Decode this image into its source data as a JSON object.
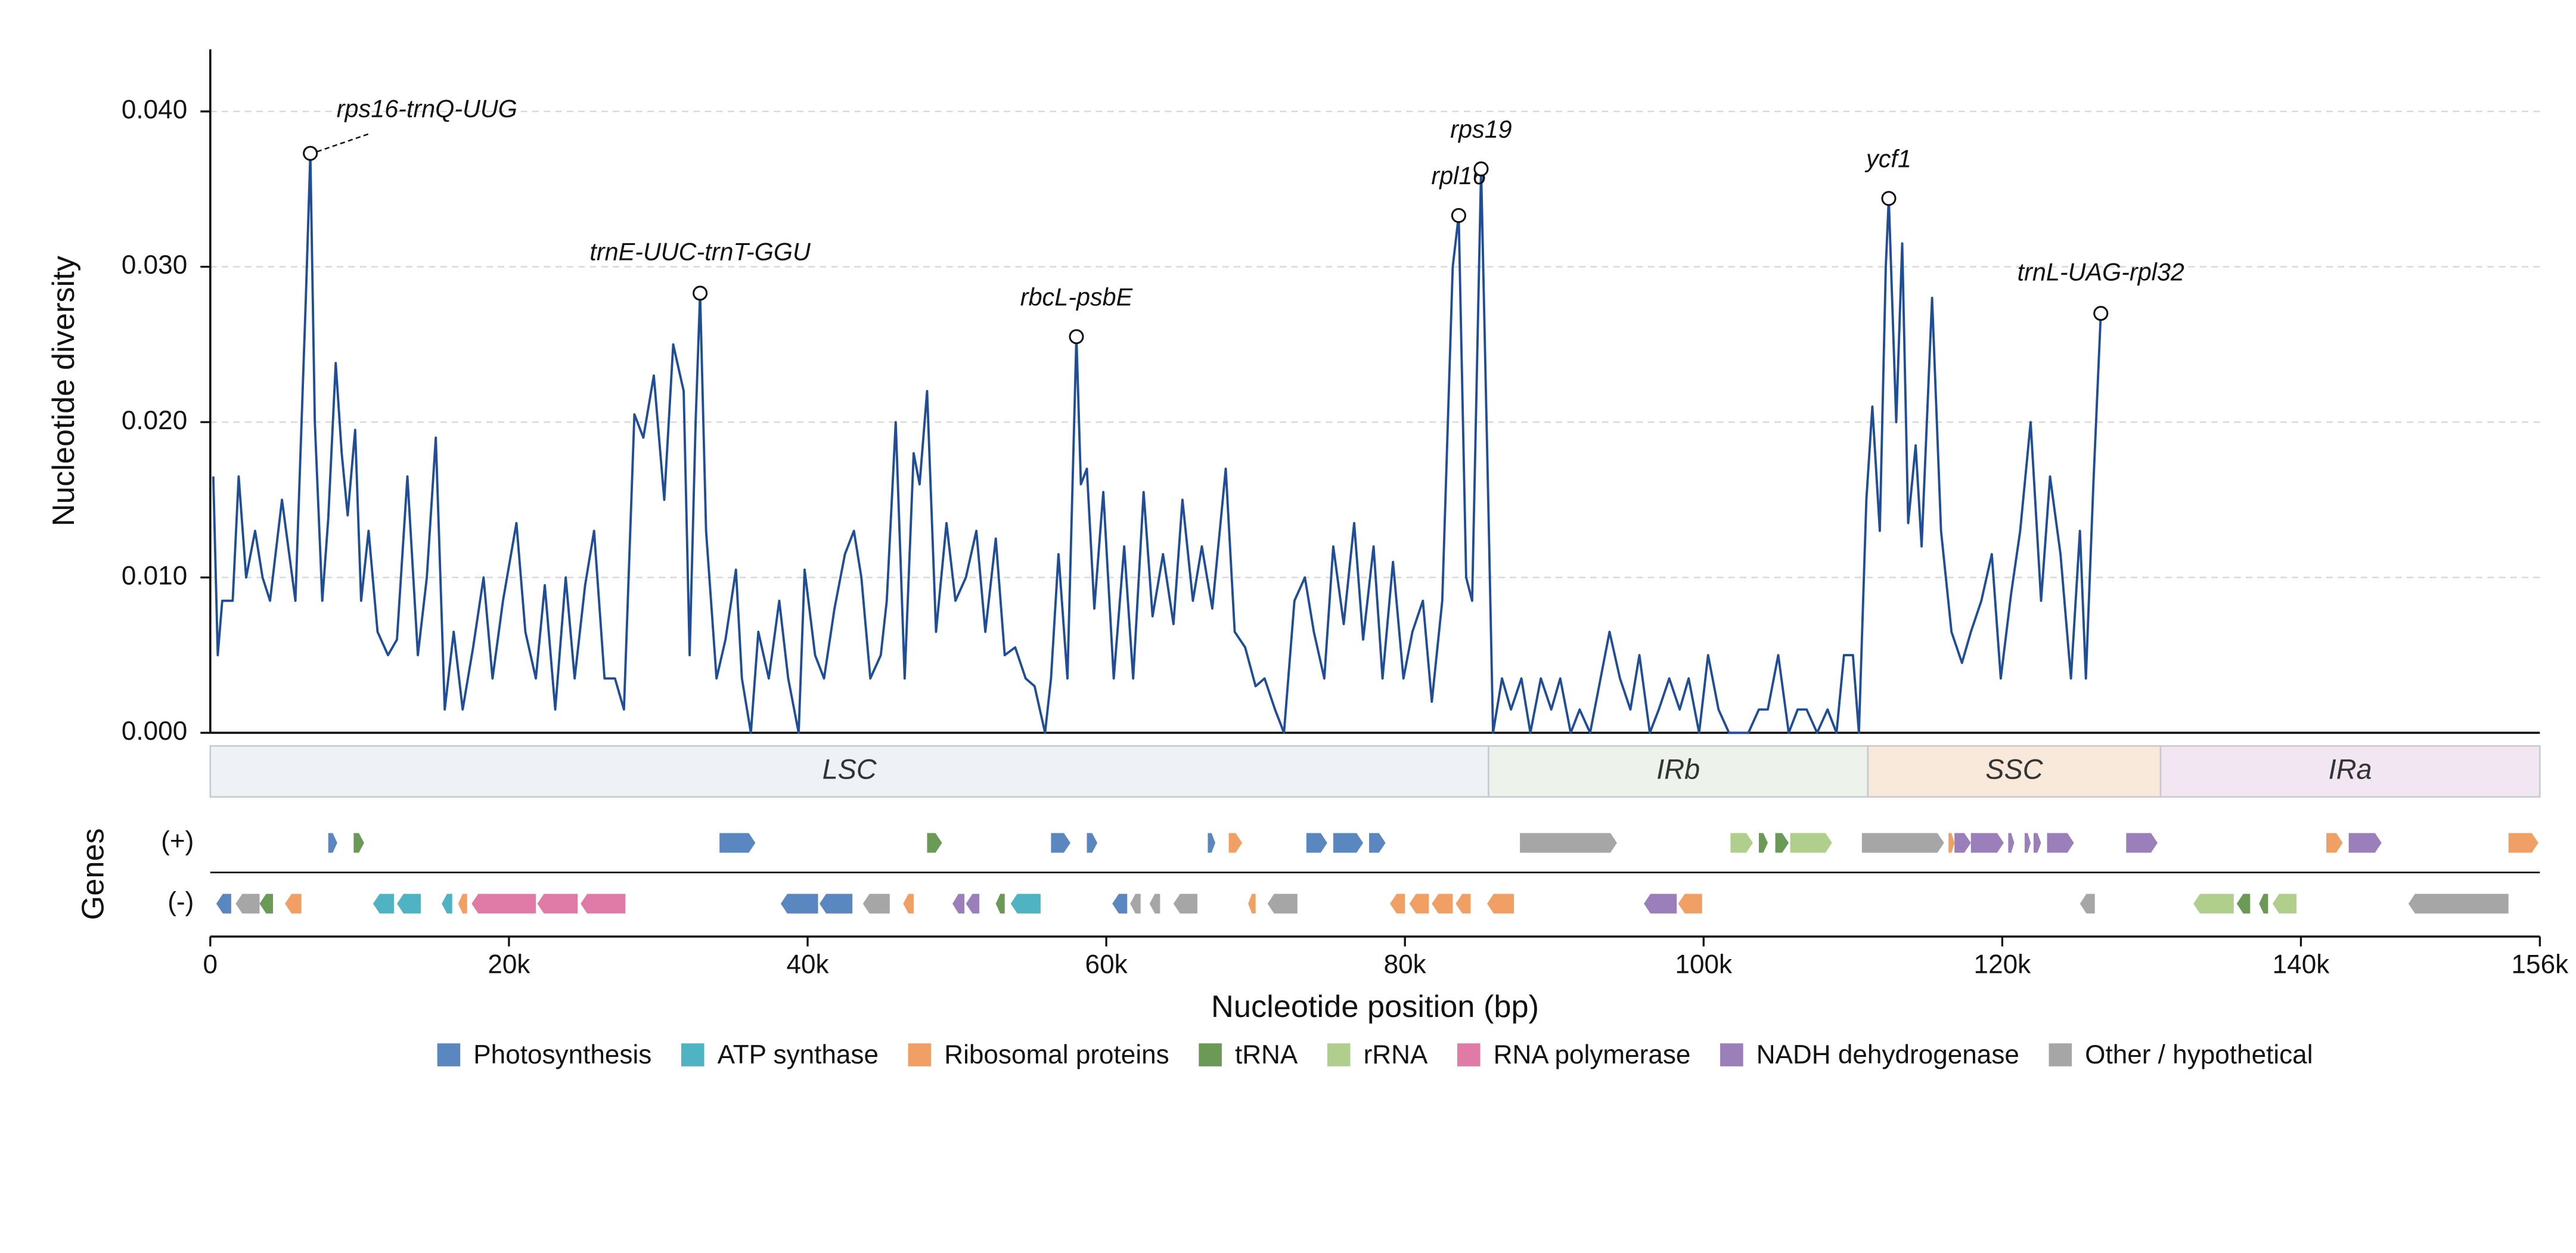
{
  "chart_data": {
    "type": "line",
    "ylabel": "Nucleotide diversity",
    "xlabel": "Nucleotide position (bp)",
    "color": "#1f4e96",
    "xlim": [
      0,
      156000
    ],
    "ylim": [
      0,
      0.044
    ],
    "xticks": [
      0,
      {
        "value": 20000,
        "label": "20k"
      },
      {
        "value": 40000,
        "label": "40k"
      },
      {
        "value": 60000,
        "label": "60k"
      },
      {
        "value": 80000,
        "label": "80k"
      },
      {
        "value": 100000,
        "label": "100k"
      },
      {
        "value": 120000,
        "label": "120k"
      },
      {
        "value": 140000,
        "label": "140k"
      },
      {
        "value": 156000,
        "label": "156k"
      }
    ],
    "yticks": [
      {
        "value": 0,
        "label": "0.000"
      },
      {
        "value": 0.01,
        "label": "0.010"
      },
      {
        "value": 0.02,
        "label": "0.020"
      },
      {
        "value": 0.03,
        "label": "0.030"
      },
      {
        "value": 0.04,
        "label": "0.040"
      }
    ],
    "grid": true,
    "x": [
      200,
      500,
      800,
      1500,
      1900,
      2400,
      3000,
      3500,
      4000,
      4800,
      5700,
      6400,
      6700,
      7000,
      7500,
      7900,
      8400,
      8800,
      9200,
      9700,
      10100,
      10600,
      11200,
      11900,
      12500,
      13200,
      13900,
      14500,
      15100,
      15700,
      16300,
      16900,
      17600,
      18300,
      18900,
      19600,
      20500,
      21100,
      21800,
      22400,
      23100,
      23800,
      24400,
      25100,
      25700,
      26400,
      27100,
      27700,
      28400,
      29000,
      29700,
      30400,
      31000,
      31700,
      32100,
      32500,
      32800,
      33200,
      33900,
      34500,
      35200,
      35600,
      36200,
      36700,
      37400,
      38100,
      38700,
      39400,
      39800,
      40500,
      41100,
      41800,
      42500,
      43100,
      43600,
      44200,
      44900,
      45300,
      45900,
      46500,
      47100,
      47500,
      48000,
      48600,
      49300,
      49900,
      50600,
      51300,
      51900,
      52600,
      53200,
      53900,
      54600,
      55200,
      55900,
      56300,
      56800,
      57400,
      58000,
      58300,
      58700,
      59200,
      59800,
      60500,
      61200,
      61800,
      62500,
      63100,
      63800,
      64500,
      65100,
      65800,
      66400,
      67100,
      68000,
      68600,
      69300,
      70000,
      70600,
      71300,
      71900,
      72600,
      73300,
      73900,
      74600,
      75200,
      75900,
      76600,
      77200,
      77900,
      78500,
      79200,
      79900,
      80500,
      81200,
      81800,
      82500,
      83200,
      83600,
      84100,
      84500,
      85100,
      85600,
      85900,
      86500,
      87100,
      87800,
      88400,
      89100,
      89800,
      90400,
      91100,
      91700,
      92400,
      93100,
      93700,
      94400,
      95100,
      95700,
      96400,
      97000,
      97700,
      98400,
      99000,
      99700,
      100300,
      101000,
      101700,
      102300,
      103000,
      103700,
      104300,
      105000,
      105700,
      106300,
      106900,
      107600,
      108300,
      108900,
      109400,
      110000,
      110400,
      110900,
      111300,
      111800,
      112200,
      112400,
      112900,
      113300,
      113700,
      114200,
      114600,
      115300,
      115900,
      116600,
      117300,
      117900,
      118600,
      119300,
      119900,
      120600,
      121200,
      121900,
      122600,
      123200,
      123900,
      124600,
      125200,
      125600,
      126100,
      126600
    ],
    "values": [
      0.0165,
      0.005,
      0.0085,
      0.0085,
      0.0165,
      0.01,
      0.013,
      0.01,
      0.0085,
      0.015,
      0.0085,
      0.028,
      0.0373,
      0.02,
      0.0085,
      0.0138,
      0.0238,
      0.018,
      0.014,
      0.0195,
      0.0085,
      0.013,
      0.0065,
      0.005,
      0.006,
      0.0165,
      0.005,
      0.01,
      0.019,
      0.0015,
      0.0065,
      0.0015,
      0.0055,
      0.01,
      0.0035,
      0.0085,
      0.0135,
      0.0065,
      0.0035,
      0.0095,
      0.0015,
      0.01,
      0.0035,
      0.0095,
      0.013,
      0.0035,
      0.0035,
      0.0015,
      0.0205,
      0.019,
      0.023,
      0.015,
      0.025,
      0.022,
      0.005,
      0.02,
      0.0283,
      0.013,
      0.0035,
      0.006,
      0.0105,
      0.0035,
      0,
      0.0065,
      0.0035,
      0.0085,
      0.0035,
      0,
      0.0105,
      0.005,
      0.0035,
      0.008,
      0.0115,
      0.013,
      0.01,
      0.0035,
      0.005,
      0.0085,
      0.02,
      0.0035,
      0.018,
      0.016,
      0.022,
      0.0065,
      0.0135,
      0.0085,
      0.01,
      0.013,
      0.0065,
      0.0125,
      0.005,
      0.0055,
      0.0035,
      0.003,
      0,
      0.0035,
      0.0115,
      0.0035,
      0.0255,
      0.016,
      0.017,
      0.008,
      0.0155,
      0.0035,
      0.012,
      0.0035,
      0.0155,
      0.0075,
      0.0115,
      0.007,
      0.015,
      0.0085,
      0.012,
      0.008,
      0.017,
      0.0065,
      0.0055,
      0.003,
      0.0035,
      0.0015,
      0,
      0.0085,
      0.01,
      0.0065,
      0.0035,
      0.012,
      0.007,
      0.0135,
      0.006,
      0.012,
      0.0035,
      0.011,
      0.0035,
      0.0065,
      0.0085,
      0.002,
      0.0085,
      0.03,
      0.0333,
      0.01,
      0.0085,
      0.0363,
      0.014,
      0,
      0.0035,
      0.0015,
      0.0035,
      0,
      0.0035,
      0.0015,
      0.0035,
      0,
      0.0015,
      0,
      0.0035,
      0.0065,
      0.0035,
      0.0015,
      0.005,
      0,
      0.0015,
      0.0035,
      0.0015,
      0.0035,
      0,
      0.005,
      0.0015,
      0,
      0,
      0,
      0.0015,
      0.0015,
      0.005,
      0,
      0.0015,
      0.0015,
      0,
      0.0015,
      0,
      0.005,
      0.005,
      0,
      0.015,
      0.021,
      0.013,
      0.03,
      0.0344,
      0.02,
      0.0315,
      0.0135,
      0.0185,
      0.012,
      0.028,
      0.013,
      0.0065,
      0.0045,
      0.0065,
      0.0085,
      0.0115,
      0.0035,
      0.009,
      0.013,
      0.02,
      0.0085,
      0.0165,
      0.0115,
      0.0035,
      0.013,
      0.0035,
      0.016,
      0.027
    ],
    "annotations": [
      {
        "text": "rps16-trnQ-UUG",
        "x": 6700,
        "y": 0.0373
      },
      {
        "text": "trnE-UUC-trnT-GGU",
        "x": 32800,
        "y": 0.0283
      },
      {
        "text": "rbcL-psbE",
        "x": 58000,
        "y": 0.0255
      },
      {
        "text": "rpl16",
        "x": 83600,
        "y": 0.0333
      },
      {
        "text": "rps19",
        "x": 85100,
        "y": 0.0363
      },
      {
        "text": "ycf1",
        "x": 112400,
        "y": 0.0344
      },
      {
        "text": "trnL-UAG-rpl32",
        "x": 126600,
        "y": 0.027
      }
    ],
    "regions": [
      {
        "label": "LSC",
        "start": 0,
        "end": 85600,
        "color": "#eef2f6"
      },
      {
        "label": "IRb",
        "start": 85600,
        "end": 111000,
        "color": "#edf3ea"
      },
      {
        "label": "SSC",
        "start": 111000,
        "end": 130600,
        "color": "#f9e9da"
      },
      {
        "label": "IRa",
        "start": 130600,
        "end": 156000,
        "color": "#f1e6f1"
      }
    ],
    "genes_label": "Genes",
    "categories": [
      {
        "name": "Photosynthesis",
        "color": "#5b87c0"
      },
      {
        "name": "ATP synthase",
        "color": "#4fb3c4"
      },
      {
        "name": "Ribosomal proteins",
        "color": "#f0a064"
      },
      {
        "name": "tRNA",
        "color": "#6a9a55"
      },
      {
        "name": "rRNA",
        "color": "#b0cf8c"
      },
      {
        "name": "RNA polymerase",
        "color": "#e07ba8"
      },
      {
        "name": "NADH dehydrogenase",
        "color": "#9b7fbb"
      },
      {
        "name": "Other / hypothetical",
        "color": "#a6a6a6"
      }
    ],
    "tracks": [
      {
        "label": "(+)",
        "genes": [
          {
            "start": 7900,
            "end": 8500,
            "cat": 0
          },
          {
            "start": 9600,
            "end": 10300,
            "cat": 3
          },
          {
            "start": 34100,
            "end": 36500,
            "cat": 0
          },
          {
            "start": 48000,
            "end": 49000,
            "cat": 3
          },
          {
            "start": 56300,
            "end": 57600,
            "cat": 0
          },
          {
            "start": 58700,
            "end": 59400,
            "cat": 0
          },
          {
            "start": 66800,
            "end": 67300,
            "cat": 0
          },
          {
            "start": 68200,
            "end": 69100,
            "cat": 2
          },
          {
            "start": 73400,
            "end": 74800,
            "cat": 0
          },
          {
            "start": 75200,
            "end": 77200,
            "cat": 0
          },
          {
            "start": 77600,
            "end": 78700,
            "cat": 0
          },
          {
            "start": 87700,
            "end": 94200,
            "cat": 7
          },
          {
            "start": 101800,
            "end": 103300,
            "cat": 4
          },
          {
            "start": 103700,
            "end": 104300,
            "cat": 3
          },
          {
            "start": 104800,
            "end": 105700,
            "cat": 3
          },
          {
            "start": 105800,
            "end": 108600,
            "cat": 4
          },
          {
            "start": 110600,
            "end": 116100,
            "cat": 7
          },
          {
            "start": 116400,
            "end": 116800,
            "cat": 2
          },
          {
            "start": 116800,
            "end": 117900,
            "cat": 6
          },
          {
            "start": 117900,
            "end": 120100,
            "cat": 6
          },
          {
            "start": 120400,
            "end": 120800,
            "cat": 6
          },
          {
            "start": 121500,
            "end": 121900,
            "cat": 6
          },
          {
            "start": 122100,
            "end": 122600,
            "cat": 6
          },
          {
            "start": 123000,
            "end": 124800,
            "cat": 6
          },
          {
            "start": 128300,
            "end": 130400,
            "cat": 6
          },
          {
            "start": 141700,
            "end": 142800,
            "cat": 2
          },
          {
            "start": 143200,
            "end": 145400,
            "cat": 6
          },
          {
            "start": 153900,
            "end": 155900,
            "cat": 2
          }
        ]
      },
      {
        "label": "(-)",
        "genes": [
          {
            "start": 400,
            "end": 1400,
            "cat": 0
          },
          {
            "start": 1700,
            "end": 3300,
            "cat": 7
          },
          {
            "start": 3300,
            "end": 4200,
            "cat": 3
          },
          {
            "start": 5000,
            "end": 6100,
            "cat": 2
          },
          {
            "start": 10900,
            "end": 12300,
            "cat": 1
          },
          {
            "start": 12500,
            "end": 14100,
            "cat": 1
          },
          {
            "start": 15500,
            "end": 16200,
            "cat": 1
          },
          {
            "start": 16600,
            "end": 17200,
            "cat": 2
          },
          {
            "start": 17500,
            "end": 21800,
            "cat": 5
          },
          {
            "start": 21900,
            "end": 24600,
            "cat": 5
          },
          {
            "start": 24800,
            "end": 27800,
            "cat": 5
          },
          {
            "start": 38200,
            "end": 40700,
            "cat": 0
          },
          {
            "start": 40800,
            "end": 43000,
            "cat": 0
          },
          {
            "start": 43700,
            "end": 45500,
            "cat": 7
          },
          {
            "start": 46400,
            "end": 47100,
            "cat": 2
          },
          {
            "start": 49700,
            "end": 50500,
            "cat": 6
          },
          {
            "start": 50600,
            "end": 51500,
            "cat": 6
          },
          {
            "start": 52600,
            "end": 53200,
            "cat": 3
          },
          {
            "start": 53600,
            "end": 55600,
            "cat": 1
          },
          {
            "start": 60400,
            "end": 61400,
            "cat": 0
          },
          {
            "start": 61600,
            "end": 62300,
            "cat": 7
          },
          {
            "start": 62900,
            "end": 63600,
            "cat": 7
          },
          {
            "start": 64500,
            "end": 66100,
            "cat": 7
          },
          {
            "start": 69500,
            "end": 70000,
            "cat": 2
          },
          {
            "start": 70800,
            "end": 72800,
            "cat": 7
          },
          {
            "start": 79000,
            "end": 80000,
            "cat": 2
          },
          {
            "start": 80300,
            "end": 81600,
            "cat": 2
          },
          {
            "start": 81800,
            "end": 83200,
            "cat": 2
          },
          {
            "start": 83400,
            "end": 84400,
            "cat": 2
          },
          {
            "start": 85500,
            "end": 87300,
            "cat": 2
          },
          {
            "start": 96000,
            "end": 98200,
            "cat": 6
          },
          {
            "start": 98300,
            "end": 99900,
            "cat": 2
          },
          {
            "start": 125200,
            "end": 126200,
            "cat": 7
          },
          {
            "start": 132800,
            "end": 135500,
            "cat": 4
          },
          {
            "start": 135700,
            "end": 136600,
            "cat": 3
          },
          {
            "start": 137200,
            "end": 137800,
            "cat": 3
          },
          {
            "start": 138100,
            "end": 139700,
            "cat": 4
          },
          {
            "start": 147200,
            "end": 153900,
            "cat": 7
          }
        ]
      }
    ]
  }
}
